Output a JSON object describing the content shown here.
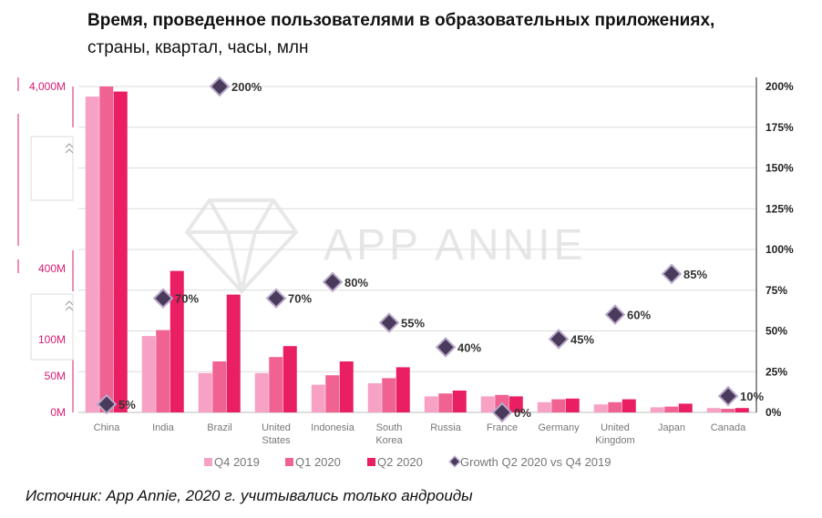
{
  "header": {
    "title": "Время, проведенное пользователями в образовательных приложениях,",
    "subtitle": "страны, квартал, часы, млн"
  },
  "footer": {
    "source": "Источник: App Annie, 2020 г.   учитывались только андроиды"
  },
  "watermark": "APP ANNIE",
  "colors": {
    "q4_2019": "#f7a1c4",
    "q1_2020": "#f06292",
    "q2_2020": "#e91e63",
    "growth_marker": "#4a3a5c",
    "left_axis": "#d81b72"
  },
  "chart_data": {
    "type": "bar",
    "y_scale": "broken",
    "categories": [
      "China",
      "India",
      "Brazil",
      "United States",
      "Indonesia",
      "South Korea",
      "Russia",
      "France",
      "Germany",
      "United Kingdom",
      "Japan",
      "Canada"
    ],
    "category_labels": [
      [
        "China"
      ],
      [
        "India"
      ],
      [
        "Brazil"
      ],
      [
        "United",
        "States"
      ],
      [
        "Indonesia"
      ],
      [
        "South",
        "Korea"
      ],
      [
        "Russia"
      ],
      [
        "France"
      ],
      [
        "Germany"
      ],
      [
        "United",
        "Kingdom"
      ],
      [
        "Japan"
      ],
      [
        "Canada"
      ]
    ],
    "series": [
      {
        "name": "Q4 2019",
        "values": [
          3800,
          115,
          54,
          54,
          38,
          40,
          22,
          22,
          14,
          11,
          7,
          6
        ]
      },
      {
        "name": "Q1 2020",
        "values": [
          4000,
          140,
          70,
          76,
          51,
          47,
          26,
          24,
          18,
          14,
          8,
          5
        ]
      },
      {
        "name": "Q2 2020",
        "values": [
          3900,
          390,
          290,
          91,
          70,
          62,
          30,
          22,
          19,
          18,
          12,
          6
        ]
      }
    ],
    "growth": {
      "name": "Growth Q2 2020 vs Q4 2019",
      "values": [
        5,
        70,
        200,
        70,
        80,
        55,
        40,
        0,
        45,
        60,
        85,
        10
      ],
      "labels": [
        "5%",
        "70%",
        "200%",
        "70%",
        "80%",
        "55%",
        "40%",
        "0%",
        "45%",
        "60%",
        "85%",
        "10%"
      ]
    },
    "left_ticks": [
      "4,000M",
      "400M",
      "100M",
      "50M",
      "0M"
    ],
    "right_ticks": [
      "200%",
      "175%",
      "150%",
      "125%",
      "100%",
      "75%",
      "50%",
      "25%",
      "0%"
    ],
    "right_ylim": [
      0,
      200
    ],
    "legend": [
      "Q4 2019",
      "Q1 2020",
      "Q2 2020",
      "Growth Q2 2020 vs Q4 2019"
    ],
    "legend_position": "bottom",
    "grid": true
  }
}
